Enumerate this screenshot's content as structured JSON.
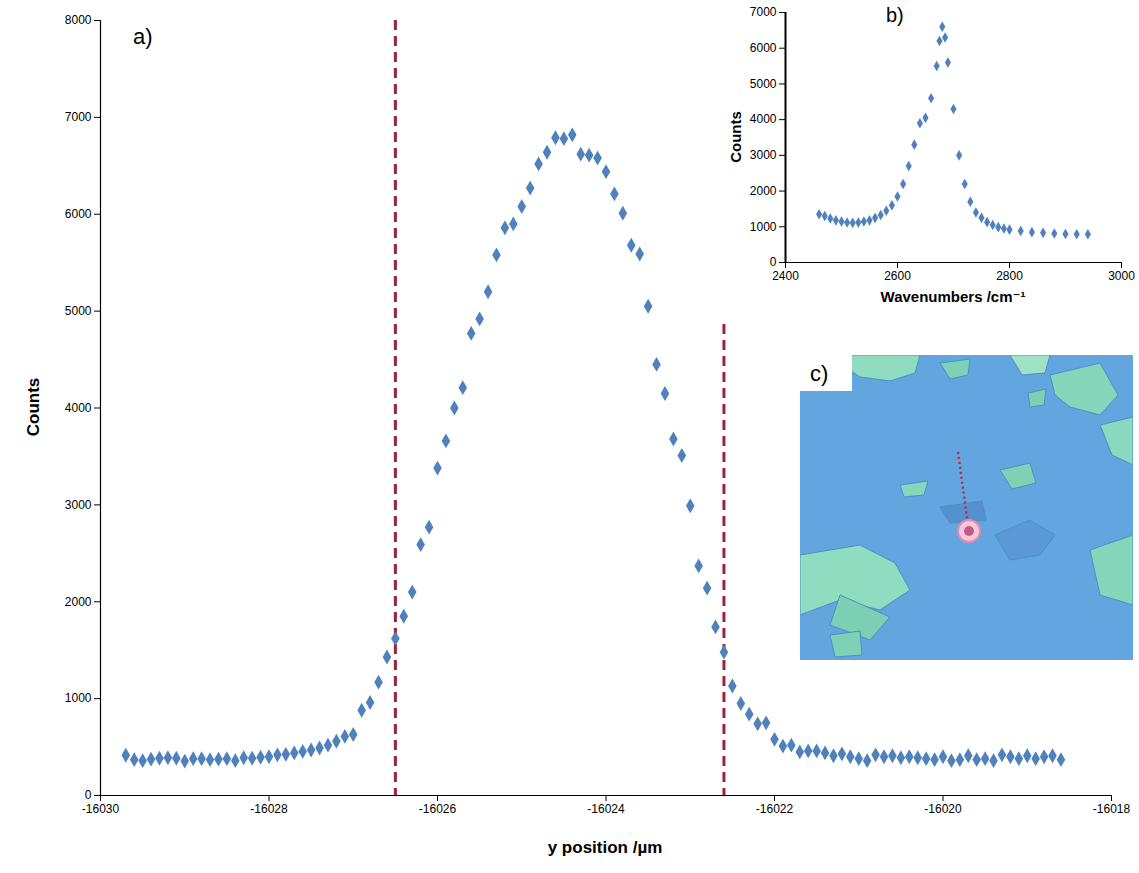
{
  "chart_data": [
    {
      "type": "scatter",
      "title": "a)",
      "x_label": "y position /µm",
      "y_label": "Counts",
      "xlim": [
        -16030,
        -16018
      ],
      "xticks": [
        -16030,
        -16028,
        -16026,
        -16024,
        -16022,
        -16020,
        -16018
      ],
      "ylim": [
        0,
        8000
      ],
      "yticks": [
        0,
        1000,
        2000,
        3000,
        4000,
        5000,
        6000,
        7000,
        8000
      ],
      "grid": false,
      "x": [
        -16029.7,
        -16029.6,
        -16029.5,
        -16029.4,
        -16029.3,
        -16029.2,
        -16029.1,
        -16029,
        -16028.9,
        -16028.8,
        -16028.7,
        -16028.6,
        -16028.5,
        -16028.4,
        -16028.3,
        -16028.2,
        -16028.1,
        -16028,
        -16027.9,
        -16027.8,
        -16027.7,
        -16027.6,
        -16027.5,
        -16027.4,
        -16027.3,
        -16027.2,
        -16027.1,
        -16027,
        -16026.9,
        -16026.8,
        -16026.7,
        -16026.6,
        -16026.5,
        -16026.4,
        -16026.3,
        -16026.2,
        -16026.1,
        -16026,
        -16025.9,
        -16025.8,
        -16025.7,
        -16025.6,
        -16025.5,
        -16025.4,
        -16025.3,
        -16025.2,
        -16025.1,
        -16025,
        -16024.9,
        -16024.8,
        -16024.7,
        -16024.6,
        -16024.5,
        -16024.4,
        -16024.3,
        -16024.2,
        -16024.1,
        -16024,
        -16023.9,
        -16023.8,
        -16023.7,
        -16023.6,
        -16023.5,
        -16023.4,
        -16023.3,
        -16023.2,
        -16023.1,
        -16023,
        -16022.9,
        -16022.8,
        -16022.7,
        -16022.6,
        -16022.5,
        -16022.4,
        -16022.3,
        -16022.2,
        -16022.1,
        -16022,
        -16021.9,
        -16021.8,
        -16021.7,
        -16021.6,
        -16021.5,
        -16021.4,
        -16021.3,
        -16021.2,
        -16021.1,
        -16021,
        -16020.9,
        -16020.8,
        -16020.7,
        -16020.6,
        -16020.5,
        -16020.4,
        -16020.3,
        -16020.2,
        -16020.1,
        -16020,
        -16019.9,
        -16019.8,
        -16019.7,
        -16019.6,
        -16019.5,
        -16019.4,
        -16019.3,
        -16019.2,
        -16019.1,
        -16019,
        -16018.9,
        -16018.8,
        -16018.7,
        -16018.6
      ],
      "series": [
        {
          "color": "#4f81bd",
          "marker": "diamond",
          "values": [
            415,
            370,
            360,
            375,
            385,
            390,
            385,
            355,
            380,
            380,
            370,
            375,
            380,
            360,
            390,
            385,
            395,
            400,
            420,
            425,
            440,
            455,
            470,
            490,
            520,
            560,
            610,
            630,
            880,
            960,
            1170,
            1430,
            1620,
            1850,
            2100,
            2590,
            2770,
            3380,
            3660,
            4000,
            4210,
            4770,
            4920,
            5200,
            5580,
            5860,
            5900,
            6080,
            6270,
            6520,
            6640,
            6790,
            6780,
            6820,
            6620,
            6610,
            6580,
            6440,
            6210,
            6010,
            5680,
            5590,
            5050,
            4450,
            4150,
            3680,
            3510,
            2990,
            2370,
            2140,
            1740,
            1480,
            1130,
            950,
            840,
            740,
            750,
            580,
            510,
            520,
            450,
            460,
            460,
            440,
            410,
            430,
            400,
            380,
            360,
            420,
            400,
            410,
            390,
            400,
            390,
            380,
            370,
            400,
            360,
            370,
            410,
            370,
            380,
            360,
            420,
            400,
            380,
            410,
            380,
            400,
            410,
            370
          ]
        }
      ],
      "reference_lines": {
        "x": [
          -16026.5,
          -16022.6
        ],
        "color": "#9b2335",
        "line_style": "dashed"
      }
    },
    {
      "type": "scatter",
      "title": "b)",
      "x_label": "Wavenumbers /cm⁻¹",
      "y_label": "Counts",
      "xlim": [
        2400,
        3000
      ],
      "xticks": [
        2400,
        2600,
        2800,
        3000
      ],
      "ylim": [
        0,
        7000
      ],
      "yticks": [
        0,
        1000,
        2000,
        3000,
        4000,
        5000,
        6000,
        7000
      ],
      "grid": false,
      "x": [
        2460,
        2470,
        2480,
        2490,
        2500,
        2510,
        2520,
        2530,
        2540,
        2550,
        2560,
        2570,
        2580,
        2590,
        2600,
        2610,
        2620,
        2630,
        2640,
        2650,
        2660,
        2670,
        2675,
        2680,
        2685,
        2690,
        2700,
        2710,
        2720,
        2730,
        2740,
        2750,
        2760,
        2770,
        2780,
        2790,
        2800,
        2820,
        2840,
        2860,
        2880,
        2900,
        2920,
        2940
      ],
      "series": [
        {
          "color": "#4f81bd",
          "marker": "diamond",
          "values": [
            1350,
            1300,
            1230,
            1180,
            1150,
            1120,
            1110,
            1120,
            1150,
            1180,
            1250,
            1330,
            1450,
            1600,
            1850,
            2200,
            2700,
            3300,
            3900,
            4050,
            4600,
            5500,
            6200,
            6600,
            6300,
            5600,
            4300,
            3000,
            2200,
            1700,
            1400,
            1250,
            1130,
            1050,
            990,
            950,
            920,
            880,
            850,
            830,
            810,
            800,
            790,
            790
          ]
        }
      ]
    }
  ],
  "image": {
    "label": "c)"
  }
}
